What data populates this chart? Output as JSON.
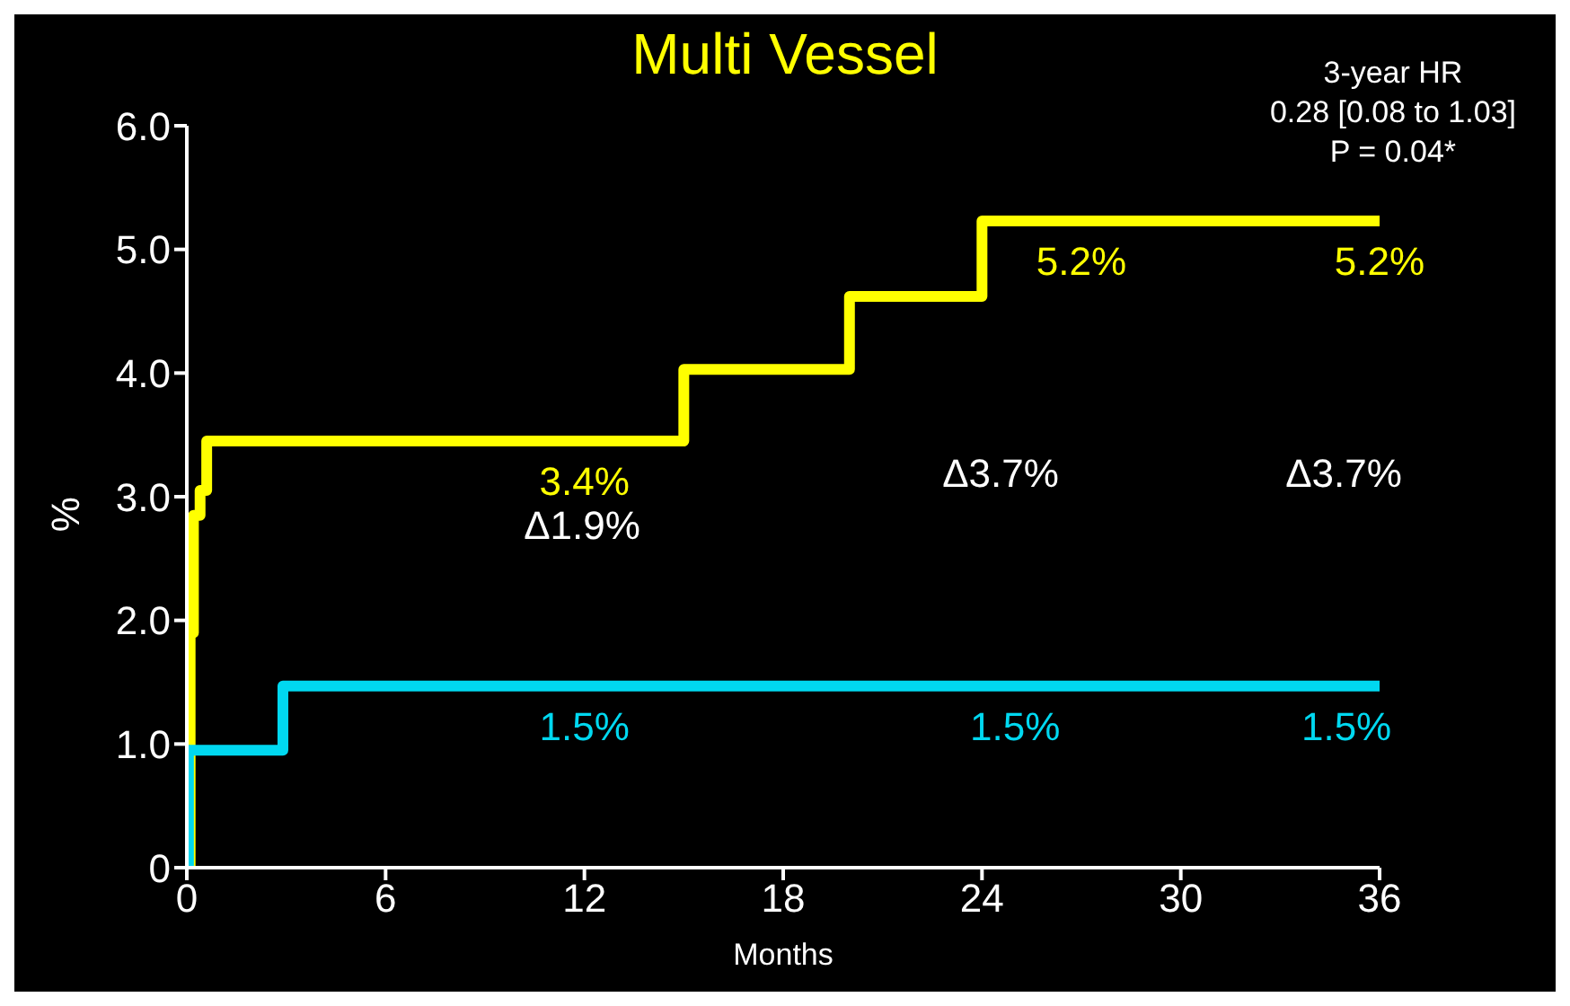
{
  "chart_data": {
    "type": "step",
    "title": "Multi Vessel",
    "xlabel": "Months",
    "ylabel": "%",
    "xlim": [
      0,
      36
    ],
    "xticks": [
      0,
      6,
      12,
      18,
      24,
      30,
      36
    ],
    "ylim": [
      0,
      6
    ],
    "yticks": [
      0,
      {
        "value": 1,
        "label": "1.0"
      },
      {
        "value": 2,
        "label": "2.0"
      },
      {
        "value": 3,
        "label": "3.0"
      },
      {
        "value": 4,
        "label": "4.0"
      },
      {
        "value": 5,
        "label": "5.0"
      },
      {
        "value": 6,
        "label": "6.0"
      }
    ],
    "grid": false,
    "legend": false,
    "marker": "none",
    "line_style": "solid",
    "series": [
      {
        "color": "#ffff00",
        "x": [
          0,
          0.1,
          0.2,
          0.4,
          0.6,
          12,
          15,
          20,
          24,
          27,
          36
        ],
        "values": [
          0,
          1.9,
          2.85,
          3.05,
          3.45,
          3.45,
          4.03,
          4.62,
          5.23,
          5.23,
          5.23
        ],
        "value_labels": [
          null,
          null,
          null,
          null,
          null,
          "3.4%",
          null,
          null,
          null,
          "5.2%",
          "5.2%"
        ]
      },
      {
        "color": "#00d8f0",
        "x": [
          0,
          0.05,
          2.9,
          12,
          25,
          35,
          36
        ],
        "values": [
          0,
          0.95,
          1.47,
          1.47,
          1.47,
          1.47,
          1.47
        ],
        "value_labels": [
          null,
          null,
          null,
          "1.5%",
          "1.5%",
          "1.5%",
          null
        ]
      }
    ],
    "annotations": [
      "3-year HR\n0.28 [0.08 to 1.03]\nP = 0.04*",
      "Δ1.9%",
      "Δ3.7%",
      "Δ3.7%"
    ]
  }
}
